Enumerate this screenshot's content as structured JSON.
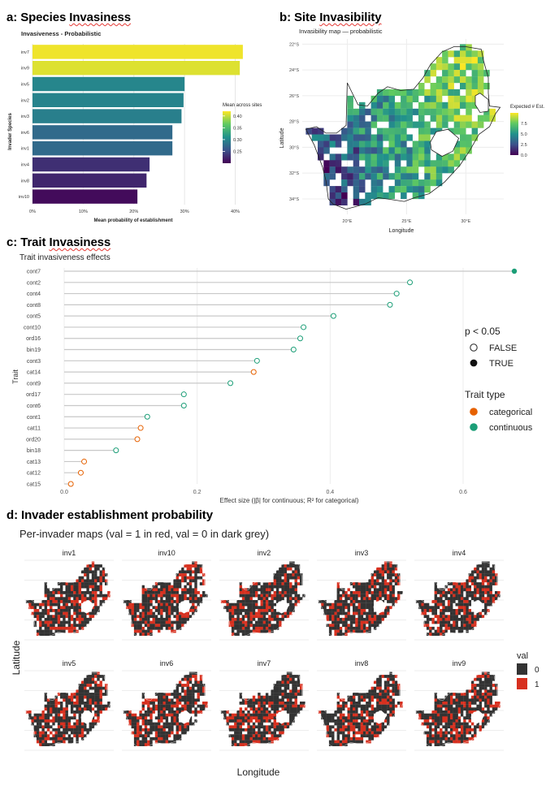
{
  "panels": {
    "a": {
      "label_prefix": "a: Species ",
      "label_word": "Invasiness"
    },
    "b": {
      "label_prefix": "b: Site ",
      "label_word": "Invasibility"
    },
    "c": {
      "label_prefix": "c: Trait ",
      "label_word": "Invasiness"
    },
    "d": {
      "label": "d: Invader establishment probability"
    }
  },
  "chart_data": [
    {
      "id": "a",
      "type": "bar",
      "orientation": "horizontal",
      "title": "Invasiveness - Probabilistic",
      "xlabel": "Mean probability of establishment",
      "ylabel": "Invader Species",
      "categories": [
        "inv7",
        "inv9",
        "inv5",
        "inv2",
        "inv3",
        "inv6",
        "inv1",
        "inv4",
        "inv8",
        "inv10"
      ],
      "values": [
        0.415,
        0.409,
        0.3,
        0.298,
        0.294,
        0.276,
        0.276,
        0.231,
        0.225,
        0.207
      ],
      "xlim": [
        0,
        0.42
      ],
      "xticks": [
        0,
        0.1,
        0.2,
        0.3,
        0.4
      ],
      "xtick_labels": [
        "0%",
        "10%",
        "20%",
        "30%",
        "40%"
      ],
      "colorbar": {
        "title": "Mean across sites",
        "range": [
          0.2,
          0.42
        ],
        "ticks": [
          0.25,
          0.3,
          0.35,
          0.4
        ],
        "tick_labels": [
          "0.25",
          "0.30",
          "0.35",
          "0.40"
        ]
      }
    },
    {
      "id": "b",
      "type": "heatmap",
      "title": "Invasibility map — probabilistic",
      "xlabel": "Longitude",
      "ylabel": "Latitude",
      "xticks": [
        20,
        25,
        30
      ],
      "xtick_labels": [
        "20°E",
        "25°E",
        "30°E"
      ],
      "yticks": [
        -22,
        -24,
        -26,
        -28,
        -30,
        -32,
        -34
      ],
      "ytick_labels": [
        "22°S",
        "24°S",
        "26°S",
        "28°S",
        "30°S",
        "32°S",
        "34°S"
      ],
      "xlim": [
        16.2,
        33.2
      ],
      "ylim": [
        -35.2,
        -21.6
      ],
      "colorbar": {
        "title": "Expected # Est.",
        "range": [
          0,
          10
        ],
        "ticks": [
          0,
          2.5,
          5,
          7.5
        ],
        "tick_labels": [
          "0.0",
          "2.5",
          "5.0",
          "7.5"
        ]
      }
    },
    {
      "id": "c",
      "type": "scatter",
      "subtype": "lollipop",
      "title": "Trait invasiveness effects",
      "xlabel": "Effect size (|β| for continuous; R² for categorical)",
      "ylabel": "Trait",
      "xlim": [
        -0.02,
        0.68
      ],
      "xticks": [
        0,
        0.2,
        0.4,
        0.6
      ],
      "xtick_labels": [
        "0.0",
        "0.2",
        "0.4",
        "0.6"
      ],
      "points": [
        {
          "trait": "cont7",
          "value": 0.677,
          "type": "continuous",
          "significant": true
        },
        {
          "trait": "cont2",
          "value": 0.52,
          "type": "continuous",
          "significant": false
        },
        {
          "trait": "cont4",
          "value": 0.5,
          "type": "continuous",
          "significant": false
        },
        {
          "trait": "cont8",
          "value": 0.49,
          "type": "continuous",
          "significant": false
        },
        {
          "trait": "cont5",
          "value": 0.405,
          "type": "continuous",
          "significant": false
        },
        {
          "trait": "cont10",
          "value": 0.36,
          "type": "continuous",
          "significant": false
        },
        {
          "trait": "ord16",
          "value": 0.355,
          "type": "continuous",
          "significant": false
        },
        {
          "trait": "bin19",
          "value": 0.345,
          "type": "continuous",
          "significant": false
        },
        {
          "trait": "cont3",
          "value": 0.29,
          "type": "continuous",
          "significant": false
        },
        {
          "trait": "cat14",
          "value": 0.285,
          "type": "categorical",
          "significant": false
        },
        {
          "trait": "cont9",
          "value": 0.25,
          "type": "continuous",
          "significant": false
        },
        {
          "trait": "ord17",
          "value": 0.18,
          "type": "continuous",
          "significant": false
        },
        {
          "trait": "cont6",
          "value": 0.18,
          "type": "continuous",
          "significant": false
        },
        {
          "trait": "cont1",
          "value": 0.125,
          "type": "continuous",
          "significant": false
        },
        {
          "trait": "cat11",
          "value": 0.115,
          "type": "categorical",
          "significant": false
        },
        {
          "trait": "ord20",
          "value": 0.11,
          "type": "categorical",
          "significant": false
        },
        {
          "trait": "bin18",
          "value": 0.078,
          "type": "continuous",
          "significant": false
        },
        {
          "trait": "cat13",
          "value": 0.03,
          "type": "categorical",
          "significant": false
        },
        {
          "trait": "cat12",
          "value": 0.025,
          "type": "categorical",
          "significant": false
        },
        {
          "trait": "cat15",
          "value": 0.01,
          "type": "categorical",
          "significant": false
        }
      ],
      "legend_sig": {
        "title": "p < 0.05",
        "items": [
          "FALSE",
          "TRUE"
        ]
      },
      "legend_type": {
        "title": "Trait type",
        "items": [
          {
            "label": "categorical",
            "color": "#e66100"
          },
          {
            "label": "continuous",
            "color": "#1b9e77"
          }
        ]
      }
    },
    {
      "id": "d",
      "type": "heatmap",
      "subtype": "small-multiples",
      "title": "Per-invader maps (val = 1 in red, val = 0 in dark grey)",
      "xlabel": "Longitude",
      "ylabel": "Latitude",
      "facets": [
        "inv1",
        "inv10",
        "inv2",
        "inv3",
        "inv4",
        "inv5",
        "inv6",
        "inv7",
        "inv8",
        "inv9"
      ],
      "legend": {
        "title": "val",
        "items": [
          {
            "label": "0",
            "color": "#333333"
          },
          {
            "label": "1",
            "color": "#d7301f"
          }
        ]
      }
    }
  ]
}
